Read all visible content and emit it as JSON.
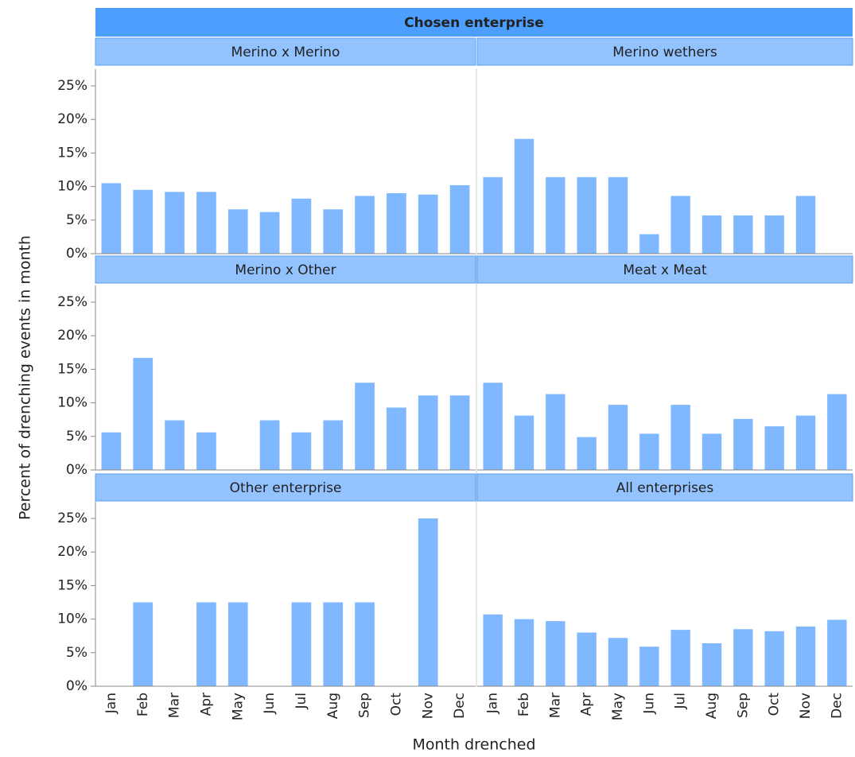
{
  "chart_data": {
    "type": "bar",
    "title": "Chosen enterprise",
    "x_label": "Month drenched",
    "y_label": "Percent of drenching events in month",
    "categories": [
      "Jan",
      "Feb",
      "Mar",
      "Apr",
      "May",
      "Jun",
      "Jul",
      "Aug",
      "Sep",
      "Oct",
      "Nov",
      "Dec"
    ],
    "color": "#80b8ff",
    "ylim": [
      0,
      27.5
    ],
    "yticks": [
      {
        "value": 0,
        "label": "0%"
      },
      {
        "value": 5,
        "label": "5%"
      },
      {
        "value": 10,
        "label": "10%"
      },
      {
        "value": 15,
        "label": "15%"
      },
      {
        "value": 20,
        "label": "20%"
      },
      {
        "value": 25,
        "label": "25%"
      }
    ],
    "panels": [
      {
        "name": "Merino x Merino",
        "values": [
          10.5,
          9.5,
          9.2,
          9.2,
          6.6,
          6.2,
          8.2,
          6.6,
          8.6,
          9.0,
          8.8,
          10.2
        ]
      },
      {
        "name": "Merino wethers",
        "values": [
          11.4,
          17.1,
          11.4,
          11.4,
          11.4,
          2.9,
          8.6,
          5.7,
          5.7,
          5.7,
          8.6,
          0
        ]
      },
      {
        "name": "Merino x Other",
        "values": [
          5.6,
          16.7,
          7.4,
          5.6,
          0,
          7.4,
          5.6,
          7.4,
          13.0,
          9.3,
          11.1,
          11.1
        ]
      },
      {
        "name": "Meat x Meat",
        "values": [
          13.0,
          8.1,
          11.3,
          4.9,
          9.7,
          5.4,
          9.7,
          5.4,
          7.6,
          6.5,
          8.1,
          11.3
        ]
      },
      {
        "name": "Other enterprise",
        "values": [
          0,
          12.5,
          0,
          12.5,
          12.5,
          0,
          12.5,
          12.5,
          12.5,
          0,
          25,
          0
        ]
      },
      {
        "name": "All enterprises",
        "values": [
          10.7,
          10.0,
          9.7,
          8.0,
          7.2,
          5.9,
          8.4,
          6.4,
          8.5,
          8.2,
          8.9,
          9.9
        ]
      }
    ]
  }
}
